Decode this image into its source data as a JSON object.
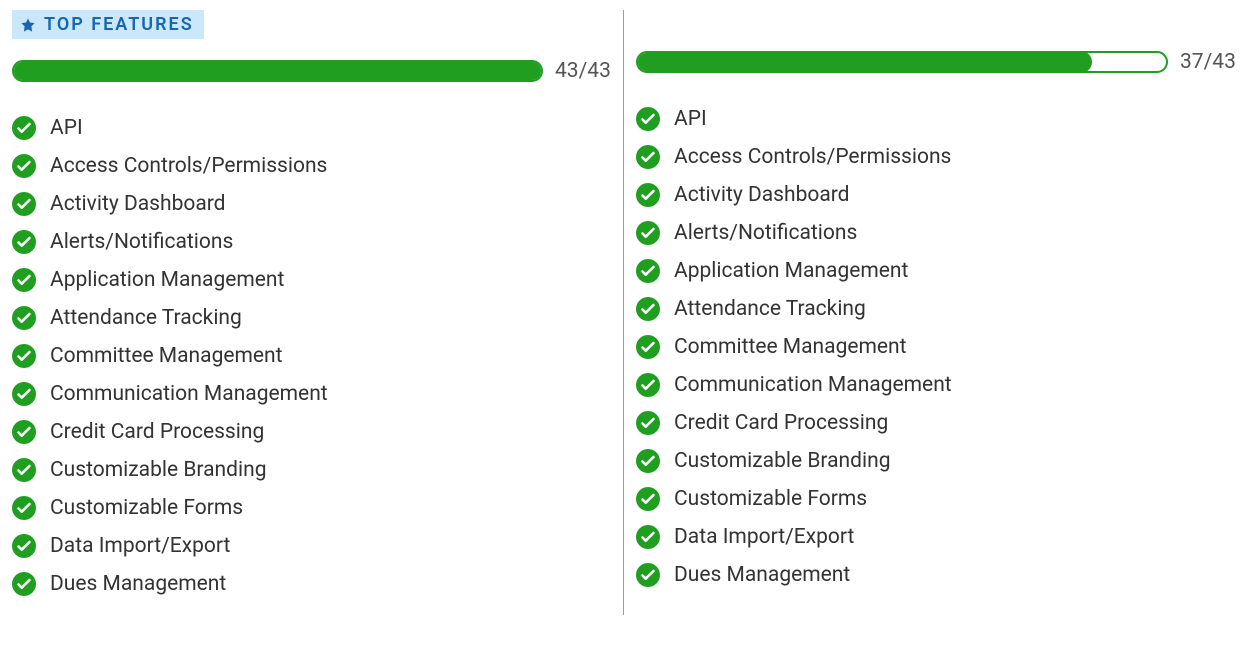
{
  "colors": {
    "accent_green": "#1f9e1f",
    "badge_bg": "#cbe8fb",
    "badge_text": "#1766b1",
    "divider": "#9c9c9c",
    "text": "#333333",
    "muted_text": "#555555",
    "background": "#ffffff"
  },
  "badge": {
    "label": "TOP FEATURES",
    "icon_name": "star-icon"
  },
  "columns": [
    {
      "progress": {
        "value": 43,
        "max": 43,
        "label": "43/43"
      },
      "features": [
        {
          "label": "API",
          "has": true
        },
        {
          "label": "Access Controls/Permissions",
          "has": true
        },
        {
          "label": "Activity Dashboard",
          "has": true
        },
        {
          "label": "Alerts/Notifications",
          "has": true
        },
        {
          "label": "Application Management",
          "has": true
        },
        {
          "label": "Attendance Tracking",
          "has": true
        },
        {
          "label": "Committee Management",
          "has": true
        },
        {
          "label": "Communication Management",
          "has": true
        },
        {
          "label": "Credit Card Processing",
          "has": true
        },
        {
          "label": "Customizable Branding",
          "has": true
        },
        {
          "label": "Customizable Forms",
          "has": true
        },
        {
          "label": "Data Import/Export",
          "has": true
        },
        {
          "label": "Dues Management",
          "has": true
        }
      ]
    },
    {
      "progress": {
        "value": 37,
        "max": 43,
        "label": "37/43"
      },
      "features": [
        {
          "label": "API",
          "has": true
        },
        {
          "label": "Access Controls/Permissions",
          "has": true
        },
        {
          "label": "Activity Dashboard",
          "has": true
        },
        {
          "label": "Alerts/Notifications",
          "has": true
        },
        {
          "label": "Application Management",
          "has": true
        },
        {
          "label": "Attendance Tracking",
          "has": true
        },
        {
          "label": "Committee Management",
          "has": true
        },
        {
          "label": "Communication Management",
          "has": true
        },
        {
          "label": "Credit Card Processing",
          "has": true
        },
        {
          "label": "Customizable Branding",
          "has": true
        },
        {
          "label": "Customizable Forms",
          "has": true
        },
        {
          "label": "Data Import/Export",
          "has": true
        },
        {
          "label": "Dues Management",
          "has": true
        }
      ]
    }
  ]
}
